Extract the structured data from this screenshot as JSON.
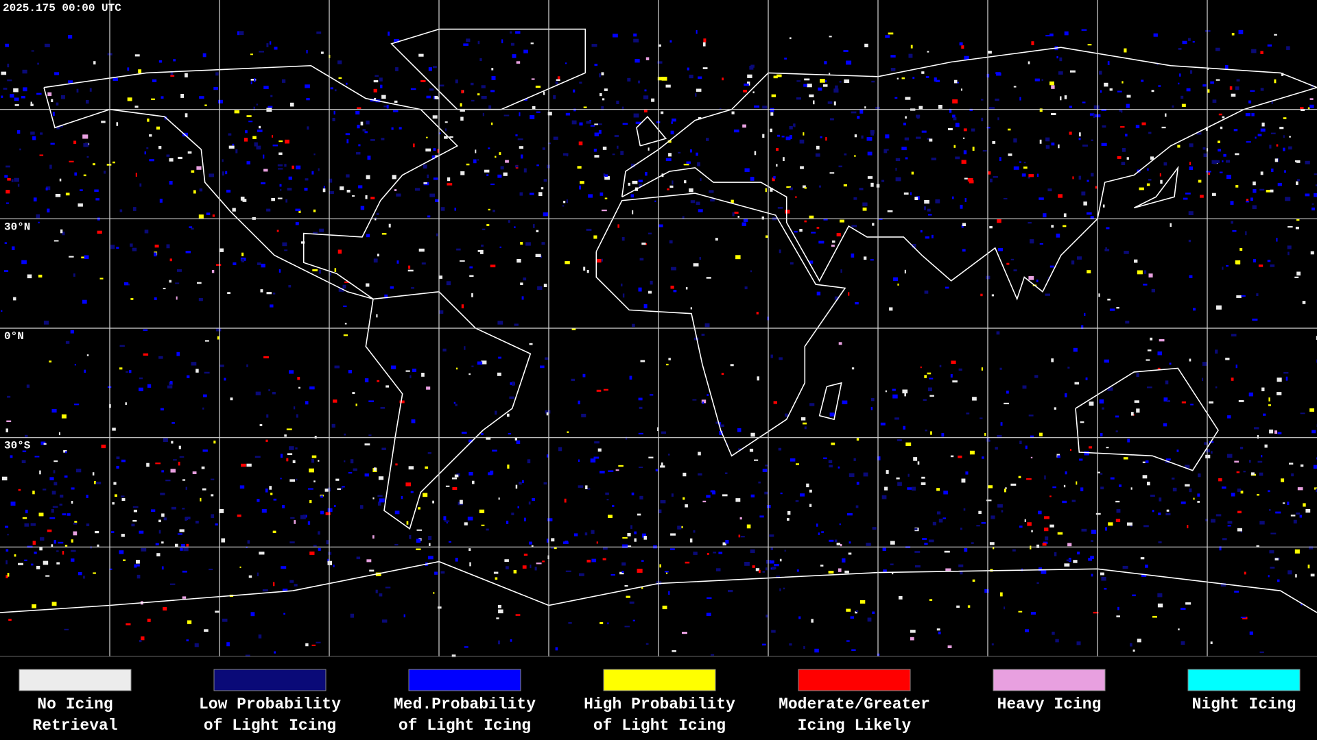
{
  "header": {
    "timestamp": "2025.175 00:00 UTC"
  },
  "map": {
    "latitude_labels": [
      "30°N",
      "0°N",
      "30°S"
    ]
  },
  "legend": {
    "items": [
      {
        "label": [
          "No Icing",
          "Retrieval"
        ],
        "color": "#ececec"
      },
      {
        "label": [
          "Low Probability",
          "of Light Icing"
        ],
        "color": "#0a0a78"
      },
      {
        "label": [
          "Med.Probability",
          "of Light Icing"
        ],
        "color": "#0000ff"
      },
      {
        "label": [
          "High Probability",
          "of Light Icing"
        ],
        "color": "#ffff00"
      },
      {
        "label": [
          "Moderate/Greater",
          "Icing Likely"
        ],
        "color": "#ff0000"
      },
      {
        "label": [
          "Heavy Icing"
        ],
        "color": "#e8a0e0"
      },
      {
        "label": [
          "Night Icing"
        ],
        "color": "#00ffff"
      }
    ]
  }
}
